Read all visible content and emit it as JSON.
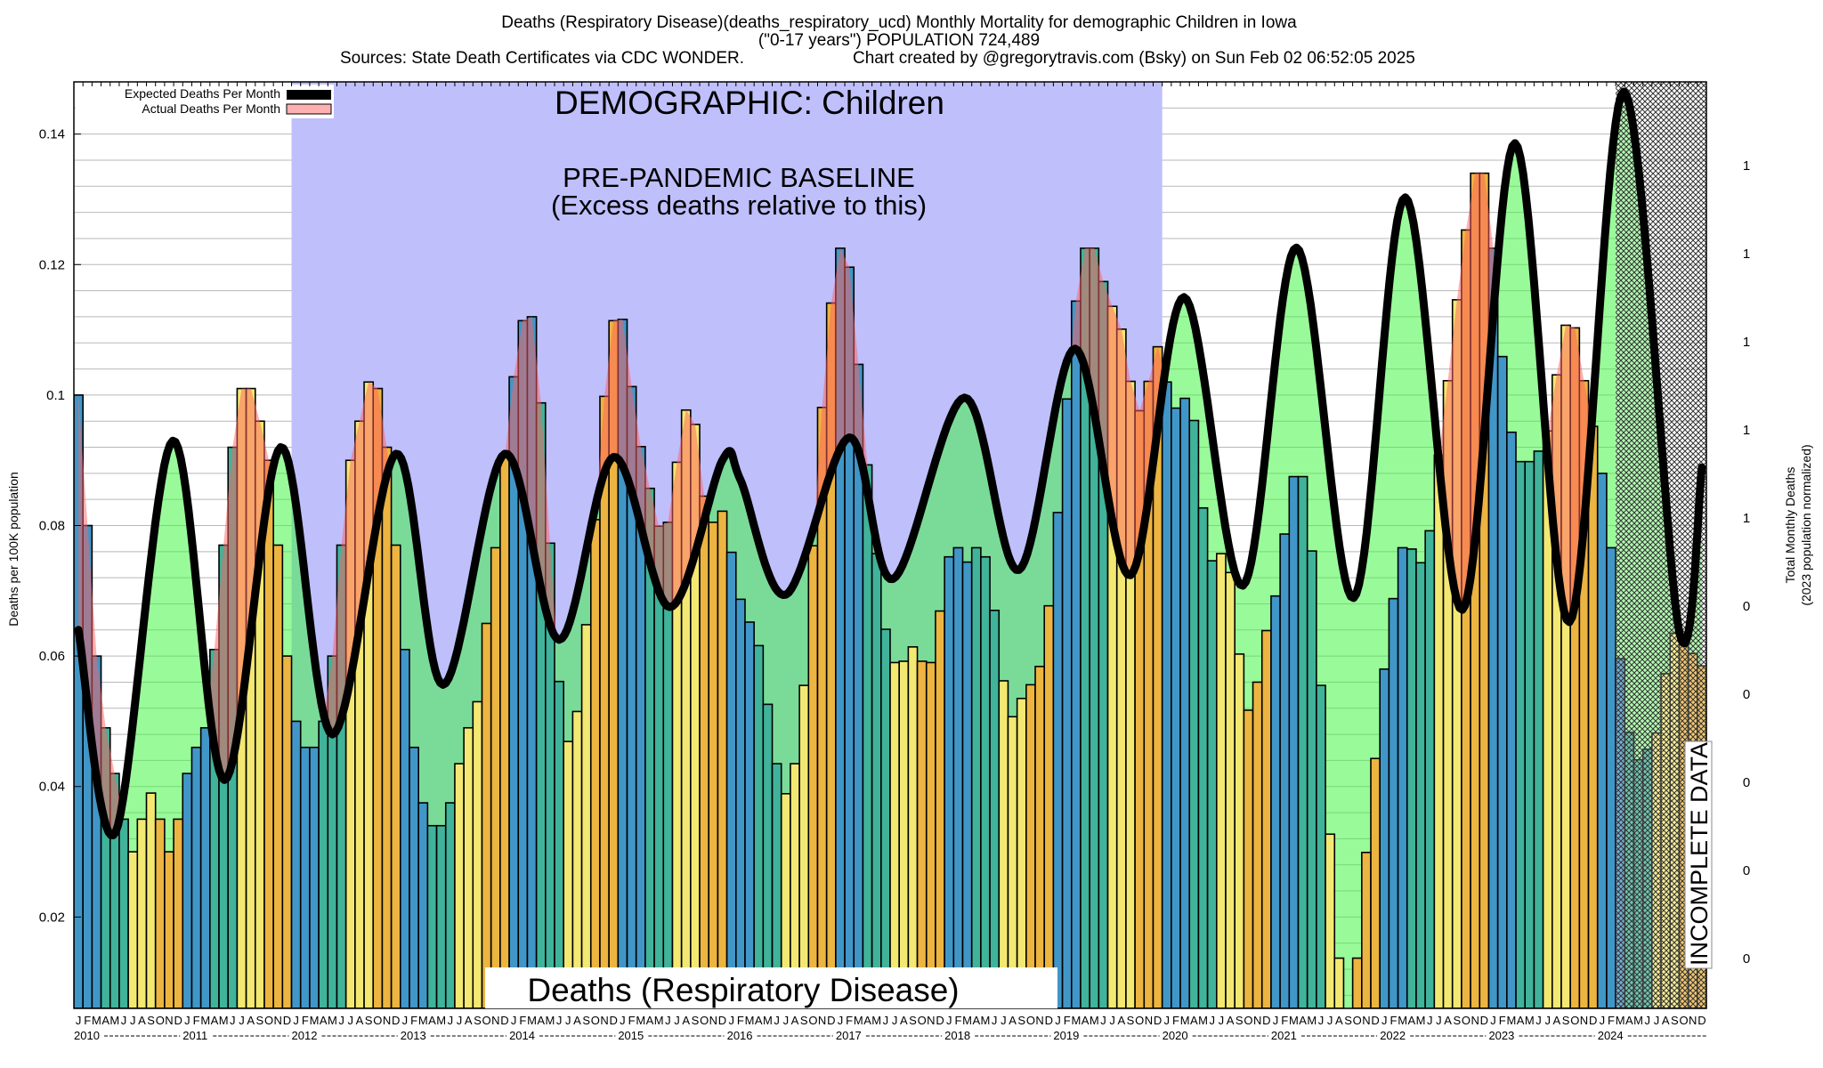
{
  "header": {
    "line1": "Deaths (Respiratory Disease)(deaths_respiratory_ucd) Monthly Mortality for demographic Children in Iowa",
    "line2": "(\"0-17 years\") POPULATION 724,489",
    "line3_sources": "Sources: State Death Certificates via CDC WONDER.",
    "line3_credit": "Chart created by @gregorytravis.com (Bsky) on Sun Feb 02 06:52:05 2025"
  },
  "annotations": {
    "demographic": "DEMOGRAPHIC: Children",
    "baseline_title": "PRE-PANDEMIC BASELINE",
    "baseline_sub": "(Excess deaths relative to this)",
    "cause_box": "Deaths (Respiratory Disease)",
    "incomplete": "INCOMPLETE DATA"
  },
  "legend": {
    "expected": "Expected Deaths Per Month",
    "actual": "Actual Deaths Per Month"
  },
  "colors": {
    "baseline_bg": "#bfbffc",
    "q1": "#4196c8",
    "q2": "#40b39a",
    "q3": "#f3e872",
    "q4": "#ecb440",
    "expected_line": "#000000",
    "excess_fill": "rgba(255,95,95,0.5)",
    "deficit_fill": "rgba(60,245,60,0.52)"
  },
  "chart_data": {
    "type": "bar",
    "title": "Deaths (Respiratory Disease)(deaths_respiratory_ucd) Monthly Mortality for demographic Children in Iowa",
    "ylabel": "Deaths per 100K population",
    "y2label_line1": "Total Monthly Deaths",
    "y2label_line2": "(2023 population normalized)",
    "ylim": [
      0.006,
      0.148
    ],
    "yticks": [
      0.02,
      0.04,
      0.06,
      0.08,
      0.1,
      0.12,
      0.14
    ],
    "ytick_labels": [
      "0.02",
      "0.04",
      "0.06",
      "0.08",
      "0.1",
      "0.12",
      "0.14"
    ],
    "y2tick_labels": [
      "1",
      "1",
      "1",
      "1",
      "1",
      "0",
      "0",
      "0",
      "0",
      "0"
    ],
    "start": "2010-01",
    "months": 180,
    "baseline_range_months": [
      24,
      120
    ],
    "incomplete_from_month": 170,
    "month_letters": [
      "J",
      "F",
      "M",
      "A",
      "M",
      "J",
      "J",
      "A",
      "S",
      "O",
      "N",
      "D"
    ],
    "years": [
      "2010",
      "2011",
      "2012",
      "2013",
      "2014",
      "2015",
      "2016",
      "2017",
      "2018",
      "2019",
      "2020",
      "2021",
      "2022",
      "2023",
      "2024"
    ],
    "actual": [
      0.1,
      0.08,
      0.06,
      0.049,
      0.042,
      0.035,
      0.03,
      0.035,
      0.039,
      0.035,
      0.03,
      0.035,
      0.042,
      0.046,
      0.049,
      0.061,
      0.077,
      0.092,
      0.101,
      0.101,
      0.096,
      0.09,
      0.077,
      0.06,
      0.05,
      0.046,
      0.046,
      0.05,
      0.06,
      0.077,
      0.09,
      0.096,
      0.102,
      0.101,
      0.092,
      0.077,
      0.061,
      0.046,
      0.0375,
      0.034,
      0.034,
      0.0375,
      0.0435,
      0.049,
      0.053,
      0.065,
      0.0766,
      0.0904,
      0.1028,
      0.1114,
      0.112,
      0.0988,
      0.0773,
      0.0561,
      0.0469,
      0.0515,
      0.0648,
      0.0809,
      0.0998,
      0.1114,
      0.1116,
      0.1013,
      0.0921,
      0.0857,
      0.0799,
      0.0805,
      0.0897,
      0.0977,
      0.0955,
      0.0845,
      0.0805,
      0.0822,
      0.0759,
      0.0687,
      0.0652,
      0.0616,
      0.0526,
      0.0435,
      0.0389,
      0.0435,
      0.0555,
      0.0769,
      0.0981,
      0.1141,
      0.1225,
      0.1196,
      0.1047,
      0.0893,
      0.0757,
      0.0641,
      0.059,
      0.0592,
      0.0614,
      0.0592,
      0.059,
      0.0669,
      0.0752,
      0.0766,
      0.0744,
      0.0766,
      0.0752,
      0.067,
      0.0562,
      0.0507,
      0.0535,
      0.0556,
      0.0584,
      0.0677,
      0.082,
      0.0994,
      0.1144,
      0.1225,
      0.1225,
      0.1174,
      0.1136,
      0.1101,
      0.1021,
      0.0976,
      0.1021,
      0.1074,
      0.102,
      0.098,
      0.0995,
      0.0961,
      0.0827,
      0.0746,
      0.0757,
      0.0728,
      0.0603,
      0.0517,
      0.056,
      0.0639,
      0.0692,
      0.0787,
      0.0875,
      0.0875,
      0.0761,
      0.0555,
      0.0327,
      0.0137,
      0.006,
      0.0137,
      0.0299,
      0.0443,
      0.058,
      0.0688,
      0.0766,
      0.0764,
      0.0743,
      0.0792,
      0.0908,
      0.1022,
      0.1146,
      0.1253,
      0.134,
      0.134,
      0.1225,
      0.1059,
      0.0943,
      0.0898,
      0.0898,
      0.0914,
      0.0945,
      0.1031,
      0.1107,
      0.1103,
      0.1022,
      0.0952,
      0.088,
      0.0766,
      0.0596,
      0.0483,
      0.0441,
      0.0457,
      0.0482,
      0.0573,
      0.0635,
      0.0634,
      0.0604,
      0.0585
    ],
    "expected_keypoints": [
      [
        0,
        0.064
      ],
      [
        4.1,
        0.033
      ],
      [
        10.4,
        0.093
      ],
      [
        16.1,
        0.041
      ],
      [
        22.3,
        0.092
      ],
      [
        28,
        0.048
      ],
      [
        35,
        0.091
      ],
      [
        40.2,
        0.0556
      ],
      [
        47,
        0.091
      ],
      [
        53,
        0.0625
      ],
      [
        59,
        0.0905
      ],
      [
        65.2,
        0.0675
      ],
      [
        71,
        0.09
      ],
      [
        73,
        0.087
      ],
      [
        78,
        0.0694
      ],
      [
        85,
        0.0935
      ],
      [
        89.8,
        0.0718
      ],
      [
        97.7,
        0.0996
      ],
      [
        103.7,
        0.0732
      ],
      [
        109.9,
        0.1071
      ],
      [
        116,
        0.0724
      ],
      [
        121.9,
        0.115
      ],
      [
        128.4,
        0.0708
      ],
      [
        134.3,
        0.1226
      ],
      [
        140.6,
        0.0689
      ],
      [
        146.3,
        0.1303
      ],
      [
        152.6,
        0.0671
      ],
      [
        158.4,
        0.1386
      ],
      [
        164.4,
        0.0652
      ],
      [
        170.4,
        0.1465
      ],
      [
        176.5,
        0.0638
      ],
      [
        179,
        0.0889
      ]
    ],
    "legend_position": "top-left"
  }
}
